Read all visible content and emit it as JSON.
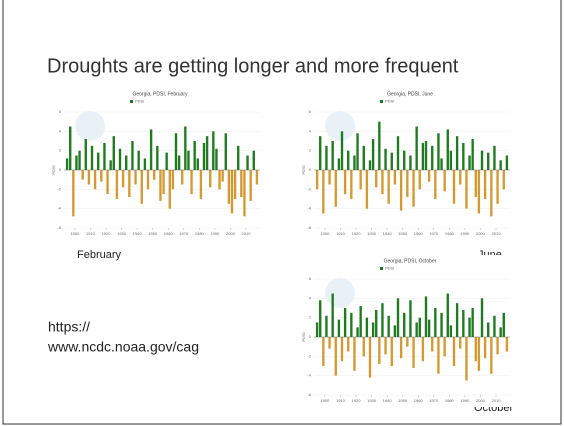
{
  "slide": {
    "title": "Droughts are getting longer and more frequent",
    "captions": [
      "February",
      "June",
      "October"
    ],
    "url_lines": [
      "https://",
      "www.ncdc.noaa.gov/cag"
    ]
  },
  "chart_data": [
    {
      "type": "bar",
      "title": "Georgia, PDSI, February",
      "y_label": "PDSI",
      "positive_color": "#217a21",
      "negative_color": "#d39a34",
      "x": [
        1895,
        1897,
        1899,
        1901,
        1903,
        1905,
        1907,
        1909,
        1911,
        1913,
        1915,
        1917,
        1919,
        1921,
        1923,
        1925,
        1927,
        1929,
        1931,
        1933,
        1935,
        1937,
        1939,
        1941,
        1943,
        1945,
        1947,
        1949,
        1951,
        1953,
        1955,
        1957,
        1959,
        1961,
        1963,
        1965,
        1967,
        1969,
        1971,
        1973,
        1975,
        1977,
        1979,
        1981,
        1983,
        1985,
        1987,
        1989,
        1991,
        1993,
        1995,
        1997,
        1999,
        2001,
        2003,
        2005,
        2007,
        2009,
        2011,
        2013,
        2015,
        2017
      ],
      "series": [
        {
          "name": "PDSI",
          "values": [
            1.2,
            4.5,
            -4.8,
            1.5,
            2.0,
            -1.0,
            3.2,
            -1.5,
            2.5,
            -2.0,
            1.8,
            -1.2,
            2.8,
            -2.5,
            1.0,
            3.5,
            -3.0,
            2.2,
            -1.8,
            1.5,
            -2.8,
            3.0,
            -1.5,
            2.0,
            -3.5,
            1.2,
            -2.0,
            4.2,
            -1.0,
            2.5,
            -3.2,
            -2.5,
            1.8,
            -4.0,
            -2.0,
            3.8,
            1.5,
            -1.5,
            4.5,
            2.0,
            -2.5,
            3.0,
            1.2,
            -3.0,
            2.8,
            3.5,
            -1.8,
            4.0,
            2.2,
            -2.0,
            -1.2,
            3.8,
            -3.5,
            -4.5,
            -3.0,
            2.5,
            -2.8,
            -4.8,
            1.5,
            -3.2,
            2.0,
            -1.5
          ]
        }
      ],
      "xlim": [
        1893,
        2019
      ],
      "xticks": [
        1900,
        1910,
        1920,
        1930,
        1940,
        1950,
        1960,
        1970,
        1980,
        1990,
        2000,
        2010
      ],
      "ylim": [
        -6,
        6
      ],
      "yticks": [
        -6,
        -4,
        -2,
        0,
        2,
        4,
        6
      ]
    },
    {
      "type": "bar",
      "title": "Georgia, PDSI, June",
      "y_label": "PDSI",
      "positive_color": "#217a21",
      "negative_color": "#d39a34",
      "x": [
        1895,
        1897,
        1899,
        1901,
        1903,
        1905,
        1907,
        1909,
        1911,
        1913,
        1915,
        1917,
        1919,
        1921,
        1923,
        1925,
        1927,
        1929,
        1931,
        1933,
        1935,
        1937,
        1939,
        1941,
        1943,
        1945,
        1947,
        1949,
        1951,
        1953,
        1955,
        1957,
        1959,
        1961,
        1963,
        1965,
        1967,
        1969,
        1971,
        1973,
        1975,
        1977,
        1979,
        1981,
        1983,
        1985,
        1987,
        1989,
        1991,
        1993,
        1995,
        1997,
        1999,
        2001,
        2003,
        2005,
        2007,
        2009,
        2011,
        2013,
        2015,
        2017
      ],
      "series": [
        {
          "name": "PDSI",
          "values": [
            -2.0,
            3.5,
            -4.5,
            2.5,
            -1.5,
            3.0,
            -3.8,
            1.2,
            4.0,
            -2.5,
            2.0,
            -3.0,
            1.5,
            3.8,
            -2.0,
            2.5,
            -4.0,
            1.0,
            3.2,
            -1.8,
            5.0,
            -2.5,
            2.2,
            -3.5,
            1.8,
            -1.5,
            3.5,
            -4.2,
            2.0,
            -2.8,
            1.5,
            -3.8,
            4.5,
            -2.0,
            2.8,
            3.0,
            -1.2,
            2.5,
            -3.0,
            3.8,
            1.2,
            -2.2,
            4.2,
            2.0,
            -3.5,
            3.5,
            -1.5,
            2.8,
            -4.0,
            1.5,
            3.2,
            -2.8,
            -4.5,
            2.0,
            -3.0,
            1.8,
            -4.8,
            2.5,
            -3.5,
            1.0,
            -2.0,
            1.5
          ]
        }
      ],
      "xlim": [
        1893,
        2019
      ],
      "xticks": [
        1900,
        1910,
        1920,
        1930,
        1940,
        1950,
        1960,
        1970,
        1980,
        1990,
        2000,
        2010
      ],
      "ylim": [
        -6,
        6
      ],
      "yticks": [
        -6,
        -4,
        -2,
        0,
        2,
        4,
        6
      ]
    },
    {
      "type": "bar",
      "title": "Georgia, PDSI, October",
      "y_label": "PDSI",
      "positive_color": "#217a21",
      "negative_color": "#d39a34",
      "x": [
        1895,
        1897,
        1899,
        1901,
        1903,
        1905,
        1907,
        1909,
        1911,
        1913,
        1915,
        1917,
        1919,
        1921,
        1923,
        1925,
        1927,
        1929,
        1931,
        1933,
        1935,
        1937,
        1939,
        1941,
        1943,
        1945,
        1947,
        1949,
        1951,
        1953,
        1955,
        1957,
        1959,
        1961,
        1963,
        1965,
        1967,
        1969,
        1971,
        1973,
        1975,
        1977,
        1979,
        1981,
        1983,
        1985,
        1987,
        1989,
        1991,
        1993,
        1995,
        1997,
        1999,
        2001,
        2003,
        2005,
        2007,
        2009,
        2011,
        2013,
        2015,
        2017
      ],
      "series": [
        {
          "name": "PDSI",
          "values": [
            1.5,
            3.8,
            -3.0,
            2.2,
            -1.2,
            4.5,
            -4.0,
            1.8,
            -2.5,
            3.0,
            -1.5,
            2.5,
            -3.5,
            1.0,
            3.2,
            -2.0,
            2.0,
            -4.2,
            1.5,
            2.8,
            -2.8,
            3.5,
            -1.8,
            2.2,
            -3.0,
            1.2,
            4.0,
            -2.2,
            2.5,
            -1.0,
            3.8,
            -3.2,
            1.5,
            2.0,
            -2.5,
            4.2,
            1.8,
            -1.5,
            3.0,
            -3.8,
            2.5,
            -2.0,
            4.5,
            1.2,
            -3.0,
            3.5,
            -1.2,
            2.8,
            -4.5,
            2.0,
            3.0,
            -2.5,
            -3.5,
            4.0,
            -2.2,
            1.5,
            -3.8,
            2.2,
            -1.8,
            1.0,
            2.5,
            -1.5
          ]
        }
      ],
      "xlim": [
        1893,
        2019
      ],
      "xticks": [
        1900,
        1910,
        1920,
        1930,
        1940,
        1950,
        1960,
        1970,
        1980,
        1990,
        2000,
        2010
      ],
      "ylim": [
        -6,
        6
      ],
      "yticks": [
        -6,
        -4,
        -2,
        0,
        2,
        4,
        6
      ]
    }
  ]
}
